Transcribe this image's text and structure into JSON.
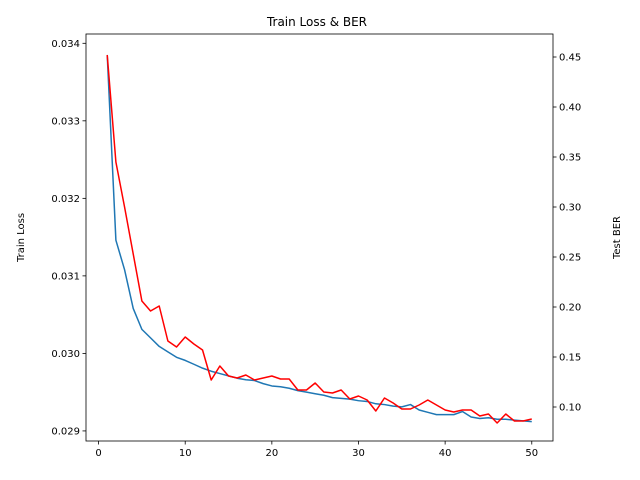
{
  "chart_data": {
    "type": "line",
    "title": "Train Loss & BER",
    "xlabel": "",
    "ylabel_left": "Train Loss",
    "ylabel_right": "Test BER",
    "xlim": [
      -1.45,
      52.45
    ],
    "ylim_left": [
      0.02887,
      0.03412
    ],
    "ylim_right": [
      0.066,
      0.473
    ],
    "x_ticks": [
      0,
      10,
      20,
      30,
      40,
      50
    ],
    "y_ticks_left": [
      0.029,
      0.03,
      0.031,
      0.032,
      0.033,
      0.034
    ],
    "y_ticks_left_labels": [
      "0.029",
      "0.030",
      "0.031",
      "0.032",
      "0.033",
      "0.034"
    ],
    "y_ticks_right": [
      0.1,
      0.15,
      0.2,
      0.25,
      0.3,
      0.35,
      0.4,
      0.45
    ],
    "y_ticks_right_labels": [
      "0.10",
      "0.15",
      "0.20",
      "0.25",
      "0.30",
      "0.35",
      "0.40",
      "0.45"
    ],
    "grid": false,
    "series": [
      {
        "axis": "left",
        "color": "#1f77b4",
        "x": [
          1,
          2,
          3,
          4,
          5,
          6,
          7,
          8,
          9,
          10,
          11,
          12,
          13,
          14,
          15,
          16,
          17,
          18,
          19,
          20,
          21,
          22,
          23,
          24,
          25,
          26,
          27,
          28,
          29,
          30,
          31,
          32,
          33,
          34,
          35,
          36,
          37,
          38,
          39,
          40,
          41,
          42,
          43,
          44,
          45,
          46,
          47,
          48,
          49,
          50
        ],
        "values": [
          0.03385,
          0.03146,
          0.03108,
          0.03058,
          0.03031,
          0.0302,
          0.03009,
          0.03002,
          0.02995,
          0.02991,
          0.02986,
          0.02981,
          0.02977,
          0.02974,
          0.02971,
          0.02968,
          0.02966,
          0.02965,
          0.02961,
          0.02958,
          0.02957,
          0.02955,
          0.02952,
          0.0295,
          0.02948,
          0.02946,
          0.02943,
          0.02942,
          0.02941,
          0.02939,
          0.02938,
          0.02935,
          0.02934,
          0.02932,
          0.02931,
          0.02934,
          0.02927,
          0.02924,
          0.02921,
          0.02921,
          0.02921,
          0.02925,
          0.02918,
          0.02916,
          0.02917,
          0.02915,
          0.02915,
          0.02914,
          0.02913,
          0.02912
        ]
      },
      {
        "axis": "right",
        "color": "#ff0000",
        "x": [
          1,
          2,
          3,
          4,
          5,
          6,
          7,
          8,
          9,
          10,
          11,
          12,
          13,
          14,
          15,
          16,
          17,
          18,
          19,
          20,
          21,
          22,
          23,
          24,
          25,
          26,
          27,
          28,
          29,
          30,
          31,
          32,
          33,
          34,
          35,
          36,
          37,
          38,
          39,
          40,
          41,
          42,
          43,
          44,
          45,
          46,
          47,
          48,
          49,
          50
        ],
        "values": [
          0.452,
          0.345,
          0.3,
          0.253,
          0.206,
          0.196,
          0.201,
          0.166,
          0.16,
          0.17,
          0.163,
          0.157,
          0.127,
          0.141,
          0.131,
          0.129,
          0.132,
          0.127,
          0.129,
          0.131,
          0.128,
          0.128,
          0.117,
          0.117,
          0.124,
          0.115,
          0.114,
          0.117,
          0.108,
          0.111,
          0.107,
          0.096,
          0.109,
          0.104,
          0.098,
          0.098,
          0.102,
          0.107,
          0.102,
          0.097,
          0.095,
          0.097,
          0.097,
          0.091,
          0.093,
          0.084,
          0.093,
          0.086,
          0.086,
          0.088
        ]
      }
    ]
  }
}
